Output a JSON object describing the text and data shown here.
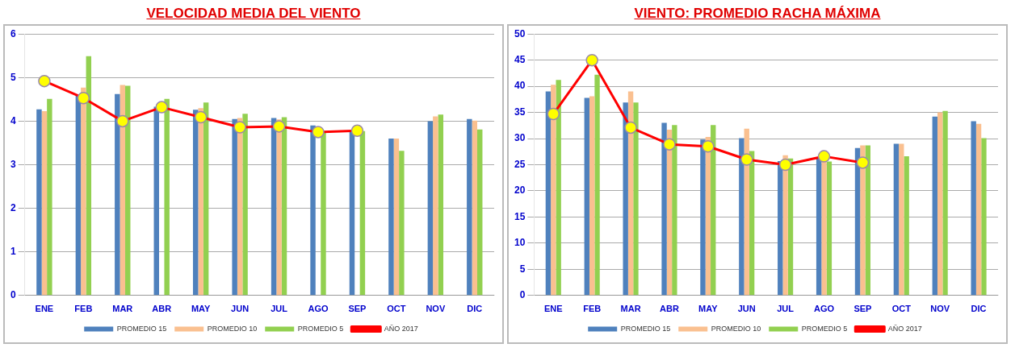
{
  "chart_data": [
    {
      "type": "bar",
      "title": "VELOCIDAD MEDIA DEL VIENTO",
      "categories": [
        "ENE",
        "FEB",
        "MAR",
        "ABR",
        "MAY",
        "JUN",
        "JUL",
        "AGO",
        "SEP",
        "OCT",
        "NOV",
        "DIC"
      ],
      "series": [
        {
          "name": "PROMEDIO 15",
          "color": "#4f81bd",
          "values": [
            4.27,
            4.6,
            4.62,
            4.33,
            4.26,
            4.05,
            4.07,
            3.9,
            3.77,
            3.6,
            4.0,
            4.05
          ]
        },
        {
          "name": "PROMEDIO 10",
          "color": "#fac090",
          "values": [
            4.23,
            4.77,
            4.83,
            null,
            4.3,
            4.07,
            4.04,
            null,
            null,
            3.6,
            4.11,
            4.01
          ]
        },
        {
          "name": "PROMEDIO 5",
          "color": "#92d050",
          "values": [
            4.51,
            5.49,
            4.81,
            4.51,
            4.43,
            4.17,
            4.09,
            3.76,
            3.77,
            3.32,
            4.15,
            3.81
          ]
        },
        {
          "name": "AÑO 2017",
          "type": "line",
          "color": "#ff0000",
          "values": [
            4.92,
            4.53,
            4.0,
            4.32,
            4.09,
            3.86,
            3.88,
            3.75,
            3.78,
            null,
            null,
            null
          ]
        }
      ],
      "ylim": [
        0,
        6
      ],
      "yticks": [
        0,
        1,
        2,
        3,
        4,
        5,
        6
      ],
      "grid": "y",
      "legend": "bottom",
      "marker": "circle"
    },
    {
      "type": "bar",
      "title": "VIENTO: PROMEDIO RACHA MÁXIMA",
      "categories": [
        "ENE",
        "FEB",
        "MAR",
        "ABR",
        "MAY",
        "JUN",
        "JUL",
        "AGO",
        "SEP",
        "OCT",
        "NOV",
        "DIC"
      ],
      "series": [
        {
          "name": "PROMEDIO 15",
          "color": "#4f81bd",
          "values": [
            39.0,
            37.8,
            36.9,
            33.0,
            29.8,
            30.1,
            25.7,
            26.3,
            28.2,
            29.0,
            34.2,
            33.3
          ]
        },
        {
          "name": "PROMEDIO 10",
          "color": "#fac090",
          "values": [
            40.3,
            38.1,
            39.0,
            31.7,
            30.3,
            31.9,
            26.8,
            26.0,
            28.7,
            29.0,
            35.0,
            32.8
          ]
        },
        {
          "name": "PROMEDIO 5",
          "color": "#92d050",
          "values": [
            41.2,
            42.2,
            36.9,
            32.6,
            32.6,
            27.6,
            26.2,
            25.6,
            28.7,
            26.6,
            35.3,
            30.1
          ]
        },
        {
          "name": "AÑO 2017",
          "type": "line",
          "color": "#ff0000",
          "values": [
            34.7,
            45.0,
            32.1,
            28.9,
            28.5,
            26.0,
            25.0,
            26.6,
            25.4,
            null,
            null,
            null
          ]
        }
      ],
      "ylim": [
        0,
        50
      ],
      "yticks": [
        0,
        5,
        10,
        15,
        20,
        25,
        30,
        35,
        40,
        45,
        50
      ],
      "grid": "y",
      "legend": "bottom",
      "marker": "circle"
    }
  ]
}
